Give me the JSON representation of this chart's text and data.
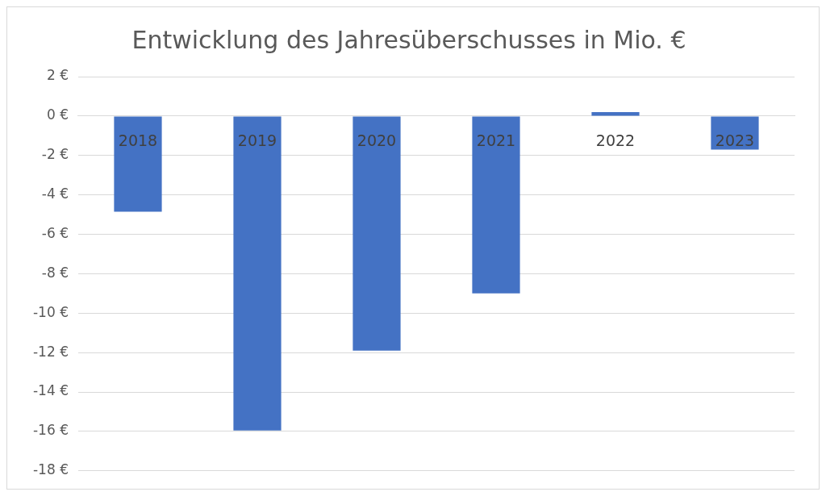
{
  "chart_data": {
    "type": "bar",
    "title": "Entwicklung des Jahresüberschusses in Mio. €",
    "categories": [
      "2018",
      "2019",
      "2020",
      "2021",
      "2022",
      "2023"
    ],
    "values": [
      -4.85,
      -15.95,
      -11.9,
      -9.0,
      0.2,
      -1.7
    ],
    "color": "#4472c4",
    "ylim": [
      -18,
      2
    ],
    "yticks": [
      {
        "value": 2,
        "label": "2 €"
      },
      {
        "value": 0,
        "label": "0 €"
      },
      {
        "value": -2,
        "label": "-2 €"
      },
      {
        "value": -4,
        "label": "-4 €"
      },
      {
        "value": -6,
        "label": "-6 €"
      },
      {
        "value": -8,
        "label": "-8 €"
      },
      {
        "value": -10,
        "label": "-10 €"
      },
      {
        "value": -12,
        "label": "-12 €"
      },
      {
        "value": -14,
        "label": "-14 €"
      },
      {
        "value": -16,
        "label": "-16 €"
      },
      {
        "value": -18,
        "label": "-18 €"
      }
    ],
    "grid": "y",
    "legend": false
  }
}
